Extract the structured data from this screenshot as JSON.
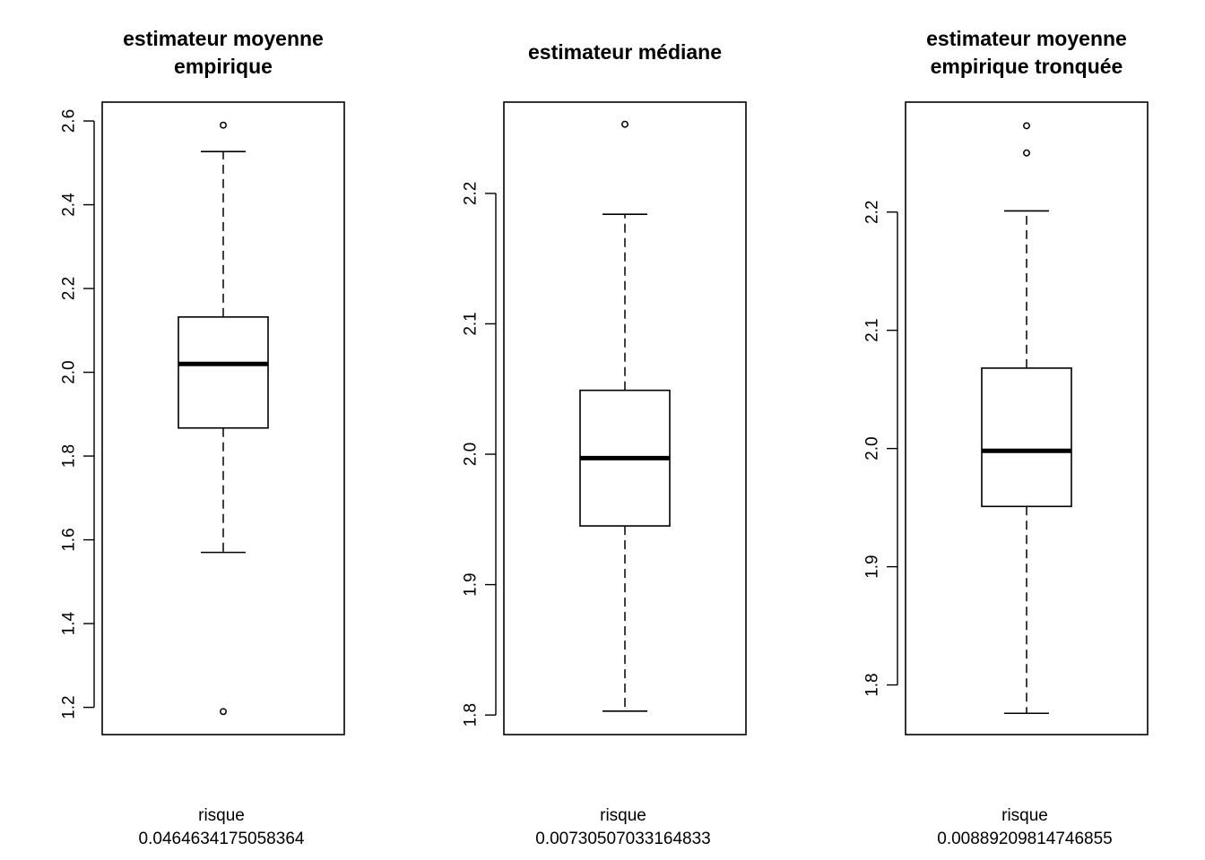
{
  "chart_data": [
    {
      "type": "boxplot",
      "title": [
        "estimateur moyenne",
        "empirique"
      ],
      "xlabel": [
        "risque",
        "0.0464634175058364"
      ],
      "ylabel": "",
      "ylim": [
        1.135,
        2.645
      ],
      "yticks": [
        1.2,
        1.4,
        1.6,
        1.8,
        2.0,
        2.2,
        2.4,
        2.6
      ],
      "ytick_labels": [
        "1.2",
        "1.4",
        "1.6",
        "1.8",
        "2.0",
        "2.2",
        "2.4",
        "2.6"
      ],
      "box": {
        "whisker_low": 1.57,
        "q1": 1.867,
        "median": 2.02,
        "q3": 2.132,
        "whisker_high": 2.527
      },
      "outliers": [
        2.59,
        1.19
      ],
      "grid": false
    },
    {
      "type": "boxplot",
      "title": [
        "estimateur médiane"
      ],
      "xlabel": [
        "risque",
        "0.00730507033164833"
      ],
      "ylabel": "",
      "ylim": [
        1.785,
        2.27
      ],
      "yticks": [
        1.8,
        1.9,
        2.0,
        2.1,
        2.2
      ],
      "ytick_labels": [
        "1.8",
        "1.9",
        "2.0",
        "2.1",
        "2.2"
      ],
      "box": {
        "whisker_low": 1.803,
        "q1": 1.945,
        "median": 1.997,
        "q3": 2.049,
        "whisker_high": 2.184
      },
      "outliers": [
        2.253
      ],
      "grid": false
    },
    {
      "type": "boxplot",
      "title": [
        "estimateur moyenne",
        "empirique tronquée"
      ],
      "xlabel": [
        "risque",
        "0.00889209814746855"
      ],
      "ylabel": "",
      "ylim": [
        1.758,
        2.293
      ],
      "yticks": [
        1.8,
        1.9,
        2.0,
        2.1,
        2.2
      ],
      "ytick_labels": [
        "1.8",
        "1.9",
        "2.0",
        "2.1",
        "2.2"
      ],
      "box": {
        "whisker_low": 1.776,
        "q1": 1.951,
        "median": 1.998,
        "q3": 2.068,
        "whisker_high": 2.201
      },
      "outliers": [
        2.273,
        2.25
      ],
      "grid": false
    }
  ]
}
